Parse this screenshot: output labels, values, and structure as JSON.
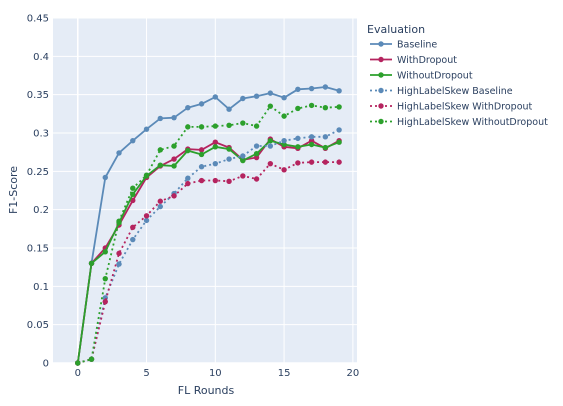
{
  "chart_data": {
    "type": "line",
    "xlabel": "FL Rounds",
    "ylabel": "F1-Score",
    "xlim": [
      -1.8,
      20.3
    ],
    "ylim": [
      0,
      0.45
    ],
    "xticks": [
      0,
      5,
      10,
      15,
      20
    ],
    "xtick_labels": [
      "0",
      "5",
      "10",
      "15",
      "20"
    ],
    "yticks": [
      0,
      0.05,
      0.1,
      0.15,
      0.2,
      0.25,
      0.3,
      0.35,
      0.4,
      0.45
    ],
    "ytick_labels": [
      "0",
      "0.05",
      "0.1",
      "0.15",
      "0.2",
      "0.25",
      "0.3",
      "0.35",
      "0.4",
      "0.45"
    ],
    "grid": true,
    "legend_title": "Evaluation",
    "legend_position": "right",
    "x": [
      0,
      1,
      2,
      3,
      4,
      5,
      6,
      7,
      8,
      9,
      10,
      11,
      12,
      13,
      14,
      15,
      16,
      17,
      18,
      19
    ],
    "series": [
      {
        "name": "Baseline",
        "color": "#5b8ab8",
        "dash": "solid",
        "values": [
          0,
          0.13,
          0.242,
          0.274,
          0.29,
          0.305,
          0.319,
          0.32,
          0.333,
          0.338,
          0.347,
          0.331,
          0.345,
          0.348,
          0.352,
          0.346,
          0.357,
          0.358,
          0.36,
          0.355
        ]
      },
      {
        "name": "WithDropout",
        "color": "#b5245f",
        "dash": "solid",
        "values": [
          0,
          0.13,
          0.15,
          0.18,
          0.212,
          0.242,
          0.257,
          0.266,
          0.279,
          0.278,
          0.288,
          0.281,
          0.265,
          0.268,
          0.292,
          0.282,
          0.28,
          0.29,
          0.28,
          0.29
        ]
      },
      {
        "name": "WithoutDropout",
        "color": "#2ca02c",
        "dash": "solid",
        "values": [
          0,
          0.13,
          0.145,
          0.183,
          0.22,
          0.244,
          0.258,
          0.257,
          0.277,
          0.272,
          0.282,
          0.279,
          0.264,
          0.273,
          0.29,
          0.285,
          0.282,
          0.285,
          0.281,
          0.288
        ]
      },
      {
        "name": "HighLabelSkew Baseline",
        "color": "#5b8ab8",
        "dash": "dot",
        "values": [
          0,
          0.005,
          0.085,
          0.129,
          0.161,
          0.186,
          0.204,
          0.221,
          0.241,
          0.256,
          0.26,
          0.266,
          0.27,
          0.283,
          0.283,
          0.29,
          0.293,
          0.295,
          0.295,
          0.304
        ]
      },
      {
        "name": "HighLabelSkew WithDropout",
        "color": "#b5245f",
        "dash": "dot",
        "values": [
          0,
          0.005,
          0.08,
          0.143,
          0.177,
          0.192,
          0.211,
          0.218,
          0.234,
          0.238,
          0.238,
          0.237,
          0.244,
          0.24,
          0.26,
          0.252,
          0.261,
          0.262,
          0.262,
          0.262
        ]
      },
      {
        "name": "HighLabelSkew WithoutDropout",
        "color": "#2ca02c",
        "dash": "dot",
        "values": [
          0,
          0.005,
          0.11,
          0.185,
          0.228,
          0.245,
          0.278,
          0.283,
          0.308,
          0.308,
          0.309,
          0.31,
          0.313,
          0.309,
          0.335,
          0.322,
          0.332,
          0.336,
          0.333,
          0.334
        ]
      }
    ]
  }
}
